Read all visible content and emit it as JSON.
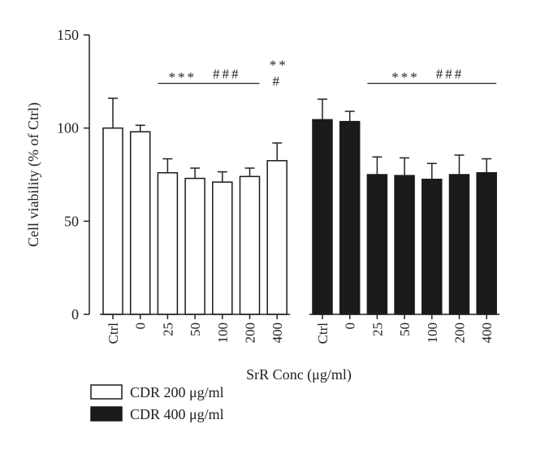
{
  "chart_data": {
    "type": "bar",
    "xlabel": "SrR Conc (μg/ml)",
    "ylabel": "Cell viability (% of Ctrl)",
    "ylim": [
      0,
      150
    ],
    "yticks": [
      "0",
      "50",
      "100",
      "150"
    ],
    "categories": [
      "Ctrl",
      "0",
      "25",
      "50",
      "100",
      "200",
      "400"
    ],
    "legend_placement": "bottom-left",
    "series": [
      {
        "name": "CDR 200 μg/ml",
        "color": "#ffffff",
        "values": [
          100,
          98,
          76,
          73,
          71,
          74,
          82.5
        ],
        "errors": [
          16,
          3.5,
          7.5,
          5.5,
          5.5,
          4.5,
          9.5
        ]
      },
      {
        "name": "CDR 400 μg/ml",
        "color": "#1a1a1a",
        "values": [
          104.5,
          103.5,
          75,
          74.5,
          72.5,
          75,
          76
        ],
        "errors": [
          11,
          5.5,
          9.5,
          9.5,
          8.5,
          10.5,
          7.5
        ]
      }
    ],
    "annotations": [
      {
        "series": 0,
        "from": 2,
        "to": 5,
        "line": true,
        "y": 124,
        "text_left": "***",
        "text_right": "###"
      },
      {
        "series": 0,
        "from": 6,
        "to": 6,
        "line": false,
        "y": 125,
        "text_left": "**",
        "text_right": "#"
      },
      {
        "series": 1,
        "from": 2,
        "to": 6,
        "line": true,
        "y": 124,
        "text_left": "***",
        "text_right": "###"
      }
    ]
  }
}
